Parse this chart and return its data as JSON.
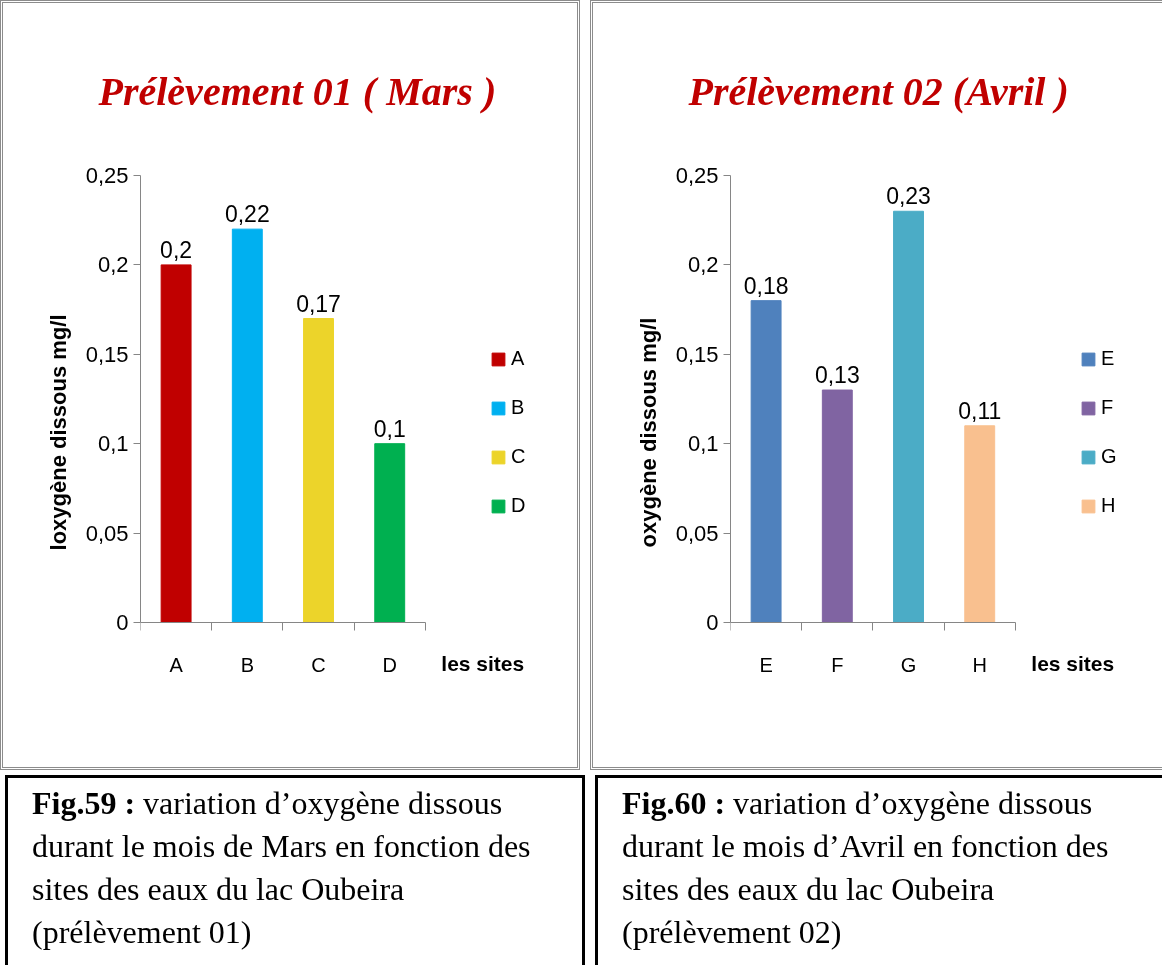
{
  "chart_data": [
    {
      "type": "bar",
      "title": "Prélèvement 01 ( Mars )",
      "xlabel": "les sites",
      "ylabel": "loxygène dissous mg/l",
      "categories": [
        "A",
        "B",
        "C",
        "D"
      ],
      "series": [
        {
          "name": "A",
          "color": "#c00000",
          "values": [
            0.2,
            null,
            null,
            null
          ],
          "value_labels": [
            "0,2",
            null,
            null,
            null
          ]
        },
        {
          "name": "B",
          "color": "#00b0f0",
          "values": [
            null,
            0.22,
            null,
            null
          ],
          "value_labels": [
            null,
            "0,22",
            null,
            null
          ]
        },
        {
          "name": "C",
          "color": "#ecd42a",
          "values": [
            null,
            null,
            0.17,
            null
          ],
          "value_labels": [
            null,
            null,
            "0,17",
            null
          ]
        },
        {
          "name": "D",
          "color": "#00b050",
          "values": [
            null,
            null,
            null,
            0.1
          ],
          "value_labels": [
            null,
            null,
            null,
            "0,1"
          ]
        }
      ],
      "ylim": [
        0,
        0.25
      ],
      "yticks": [
        0,
        {
          "value": 0.05,
          "label": "0,05"
        },
        {
          "value": 0.1,
          "label": "0,1"
        },
        {
          "value": 0.15,
          "label": "0,15"
        },
        {
          "value": 0.2,
          "label": "0,2"
        },
        {
          "value": 0.25,
          "label": "0,25"
        }
      ],
      "legend": "right",
      "annotations": [
        "Fig.59 :",
        "variation d’oxygène dissous durant le mois de Mars en fonction des sites des eaux du lac Oubeira (prélèvement 01)"
      ]
    },
    {
      "type": "bar",
      "title": "Prélèvement 02 (Avril )",
      "xlabel": "les sites",
      "ylabel": "oxygène dissous mg/l",
      "categories": [
        "E",
        "F",
        "G",
        "H"
      ],
      "series": [
        {
          "name": "E",
          "color": "#4f81bd",
          "values": [
            0.18,
            null,
            null,
            null
          ],
          "value_labels": [
            "0,18",
            null,
            null,
            null
          ]
        },
        {
          "name": "F",
          "color": "#8064a2",
          "values": [
            null,
            0.13,
            null,
            null
          ],
          "value_labels": [
            null,
            "0,13",
            null,
            null
          ]
        },
        {
          "name": "G",
          "color": "#4bacc6",
          "values": [
            null,
            null,
            0.23,
            null
          ],
          "value_labels": [
            null,
            null,
            "0,23",
            null
          ]
        },
        {
          "name": "H",
          "color": "#f9c08f",
          "values": [
            null,
            null,
            null,
            0.11
          ],
          "value_labels": [
            null,
            null,
            null,
            "0,11"
          ]
        }
      ],
      "ylim": [
        0,
        0.25
      ],
      "yticks": [
        0,
        {
          "value": 0.05,
          "label": "0,05"
        },
        {
          "value": 0.1,
          "label": "0,1"
        },
        {
          "value": 0.15,
          "label": "0,15"
        },
        {
          "value": 0.2,
          "label": "0,2"
        },
        {
          "value": 0.25,
          "label": "0,25"
        }
      ],
      "legend": "right",
      "annotations": [
        "Fig.60 :",
        "variation d’oxygène dissous durant le mois d’Avril en fonction des sites des eaux du lac Oubeira (prélèvement 02)"
      ]
    }
  ]
}
